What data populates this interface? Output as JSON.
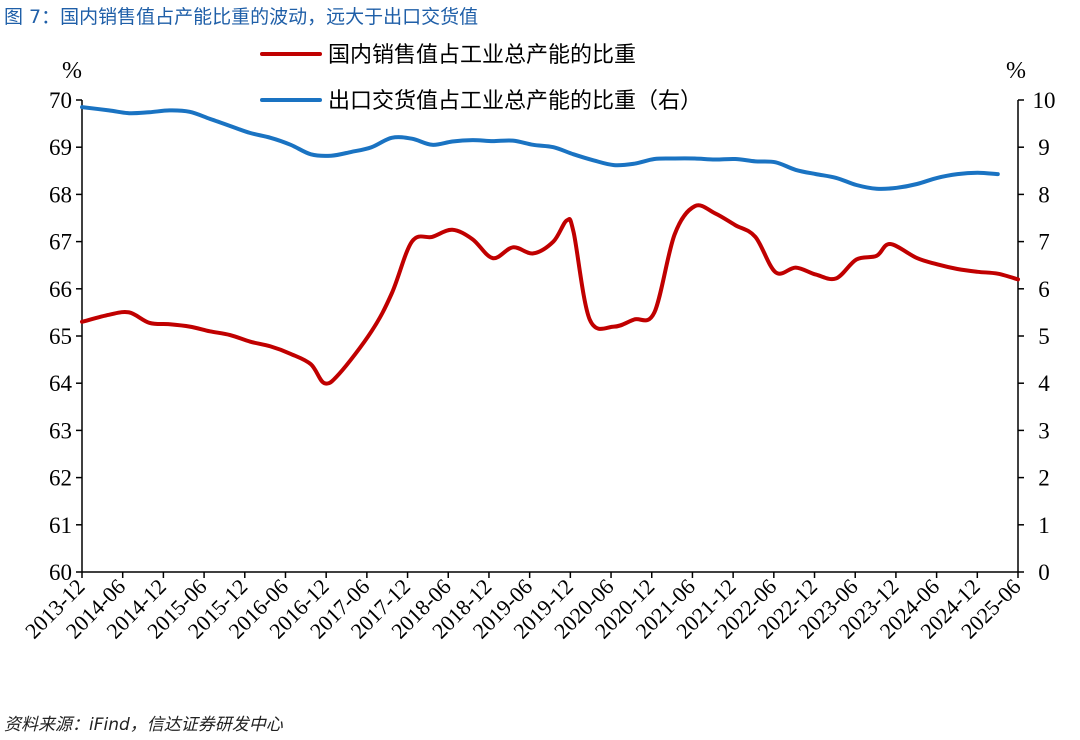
{
  "figure": {
    "title": "图 7：国内销售值占产能比重的波动，远大于出口交货值",
    "source": "资料来源：iFind，信达证券研发中心"
  },
  "chart_data": {
    "type": "line",
    "left_unit": "%",
    "right_unit": "%",
    "y_left": {
      "min": 60,
      "max": 70,
      "ticks": [
        60,
        61,
        62,
        63,
        64,
        65,
        66,
        67,
        68,
        69,
        70
      ]
    },
    "y_right": {
      "min": 0,
      "max": 10,
      "ticks": [
        0,
        1,
        2,
        3,
        4,
        5,
        6,
        7,
        8,
        9,
        10
      ]
    },
    "x_range": [
      2013.917,
      2025.5
    ],
    "x_tick_labels": [
      "2013-12",
      "2014-06",
      "2014-12",
      "2015-06",
      "2015-12",
      "2016-06",
      "2016-12",
      "2017-06",
      "2017-12",
      "2018-06",
      "2018-12",
      "2019-06",
      "2019-12",
      "2020-06",
      "2020-12",
      "2021-06",
      "2021-12",
      "2022-06",
      "2022-12",
      "2023-06",
      "2023-12",
      "2024-06",
      "2024-12",
      "2025-06"
    ],
    "series": [
      {
        "name": "国内销售值占工业总产能的比重",
        "axis": "left",
        "color": "#c00000",
        "points": [
          [
            2013.917,
            65.3
          ],
          [
            2014.25,
            65.45
          ],
          [
            2014.5,
            65.5
          ],
          [
            2014.75,
            65.28
          ],
          [
            2015.0,
            65.25
          ],
          [
            2015.25,
            65.2
          ],
          [
            2015.5,
            65.1
          ],
          [
            2015.75,
            65.02
          ],
          [
            2016.0,
            64.88
          ],
          [
            2016.25,
            64.78
          ],
          [
            2016.5,
            64.62
          ],
          [
            2016.75,
            64.4
          ],
          [
            2016.917,
            64.0
          ],
          [
            2017.1,
            64.2
          ],
          [
            2017.5,
            65.1
          ],
          [
            2017.75,
            65.9
          ],
          [
            2018.0,
            67.0
          ],
          [
            2018.25,
            67.1
          ],
          [
            2018.5,
            67.25
          ],
          [
            2018.75,
            67.05
          ],
          [
            2019.0,
            66.65
          ],
          [
            2019.25,
            66.88
          ],
          [
            2019.5,
            66.75
          ],
          [
            2019.75,
            67.0
          ],
          [
            2019.917,
            67.45
          ],
          [
            2020.0,
            67.2
          ],
          [
            2020.2,
            65.35
          ],
          [
            2020.5,
            65.2
          ],
          [
            2020.75,
            65.35
          ],
          [
            2021.0,
            65.5
          ],
          [
            2021.25,
            67.15
          ],
          [
            2021.5,
            67.75
          ],
          [
            2021.75,
            67.6
          ],
          [
            2022.0,
            67.35
          ],
          [
            2022.25,
            67.1
          ],
          [
            2022.5,
            66.35
          ],
          [
            2022.75,
            66.45
          ],
          [
            2023.0,
            66.3
          ],
          [
            2023.25,
            66.22
          ],
          [
            2023.5,
            66.62
          ],
          [
            2023.75,
            66.7
          ],
          [
            2023.917,
            66.95
          ],
          [
            2024.25,
            66.65
          ],
          [
            2024.5,
            66.52
          ],
          [
            2024.75,
            66.42
          ],
          [
            2025.0,
            66.36
          ],
          [
            2025.25,
            66.32
          ],
          [
            2025.5,
            66.2
          ]
        ]
      },
      {
        "name": "出口交货值占工业总产能的比重（右）",
        "axis": "right",
        "color": "#1a73c2",
        "points": [
          [
            2013.917,
            9.85
          ],
          [
            2014.25,
            9.78
          ],
          [
            2014.5,
            9.72
          ],
          [
            2014.75,
            9.74
          ],
          [
            2015.0,
            9.78
          ],
          [
            2015.25,
            9.75
          ],
          [
            2015.5,
            9.6
          ],
          [
            2015.75,
            9.45
          ],
          [
            2016.0,
            9.3
          ],
          [
            2016.25,
            9.2
          ],
          [
            2016.5,
            9.05
          ],
          [
            2016.75,
            8.85
          ],
          [
            2017.0,
            8.82
          ],
          [
            2017.25,
            8.9
          ],
          [
            2017.5,
            9.0
          ],
          [
            2017.75,
            9.2
          ],
          [
            2018.0,
            9.18
          ],
          [
            2018.25,
            9.05
          ],
          [
            2018.5,
            9.12
          ],
          [
            2018.75,
            9.15
          ],
          [
            2019.0,
            9.13
          ],
          [
            2019.25,
            9.14
          ],
          [
            2019.5,
            9.05
          ],
          [
            2019.75,
            9.0
          ],
          [
            2020.0,
            8.85
          ],
          [
            2020.25,
            8.72
          ],
          [
            2020.5,
            8.62
          ],
          [
            2020.75,
            8.65
          ],
          [
            2021.0,
            8.75
          ],
          [
            2021.25,
            8.76
          ],
          [
            2021.5,
            8.76
          ],
          [
            2021.75,
            8.74
          ],
          [
            2022.0,
            8.75
          ],
          [
            2022.25,
            8.7
          ],
          [
            2022.5,
            8.68
          ],
          [
            2022.75,
            8.52
          ],
          [
            2023.0,
            8.43
          ],
          [
            2023.25,
            8.35
          ],
          [
            2023.5,
            8.2
          ],
          [
            2023.75,
            8.12
          ],
          [
            2024.0,
            8.14
          ],
          [
            2024.25,
            8.22
          ],
          [
            2024.5,
            8.35
          ],
          [
            2024.75,
            8.43
          ],
          [
            2025.0,
            8.46
          ],
          [
            2025.25,
            8.43
          ]
        ]
      }
    ]
  }
}
